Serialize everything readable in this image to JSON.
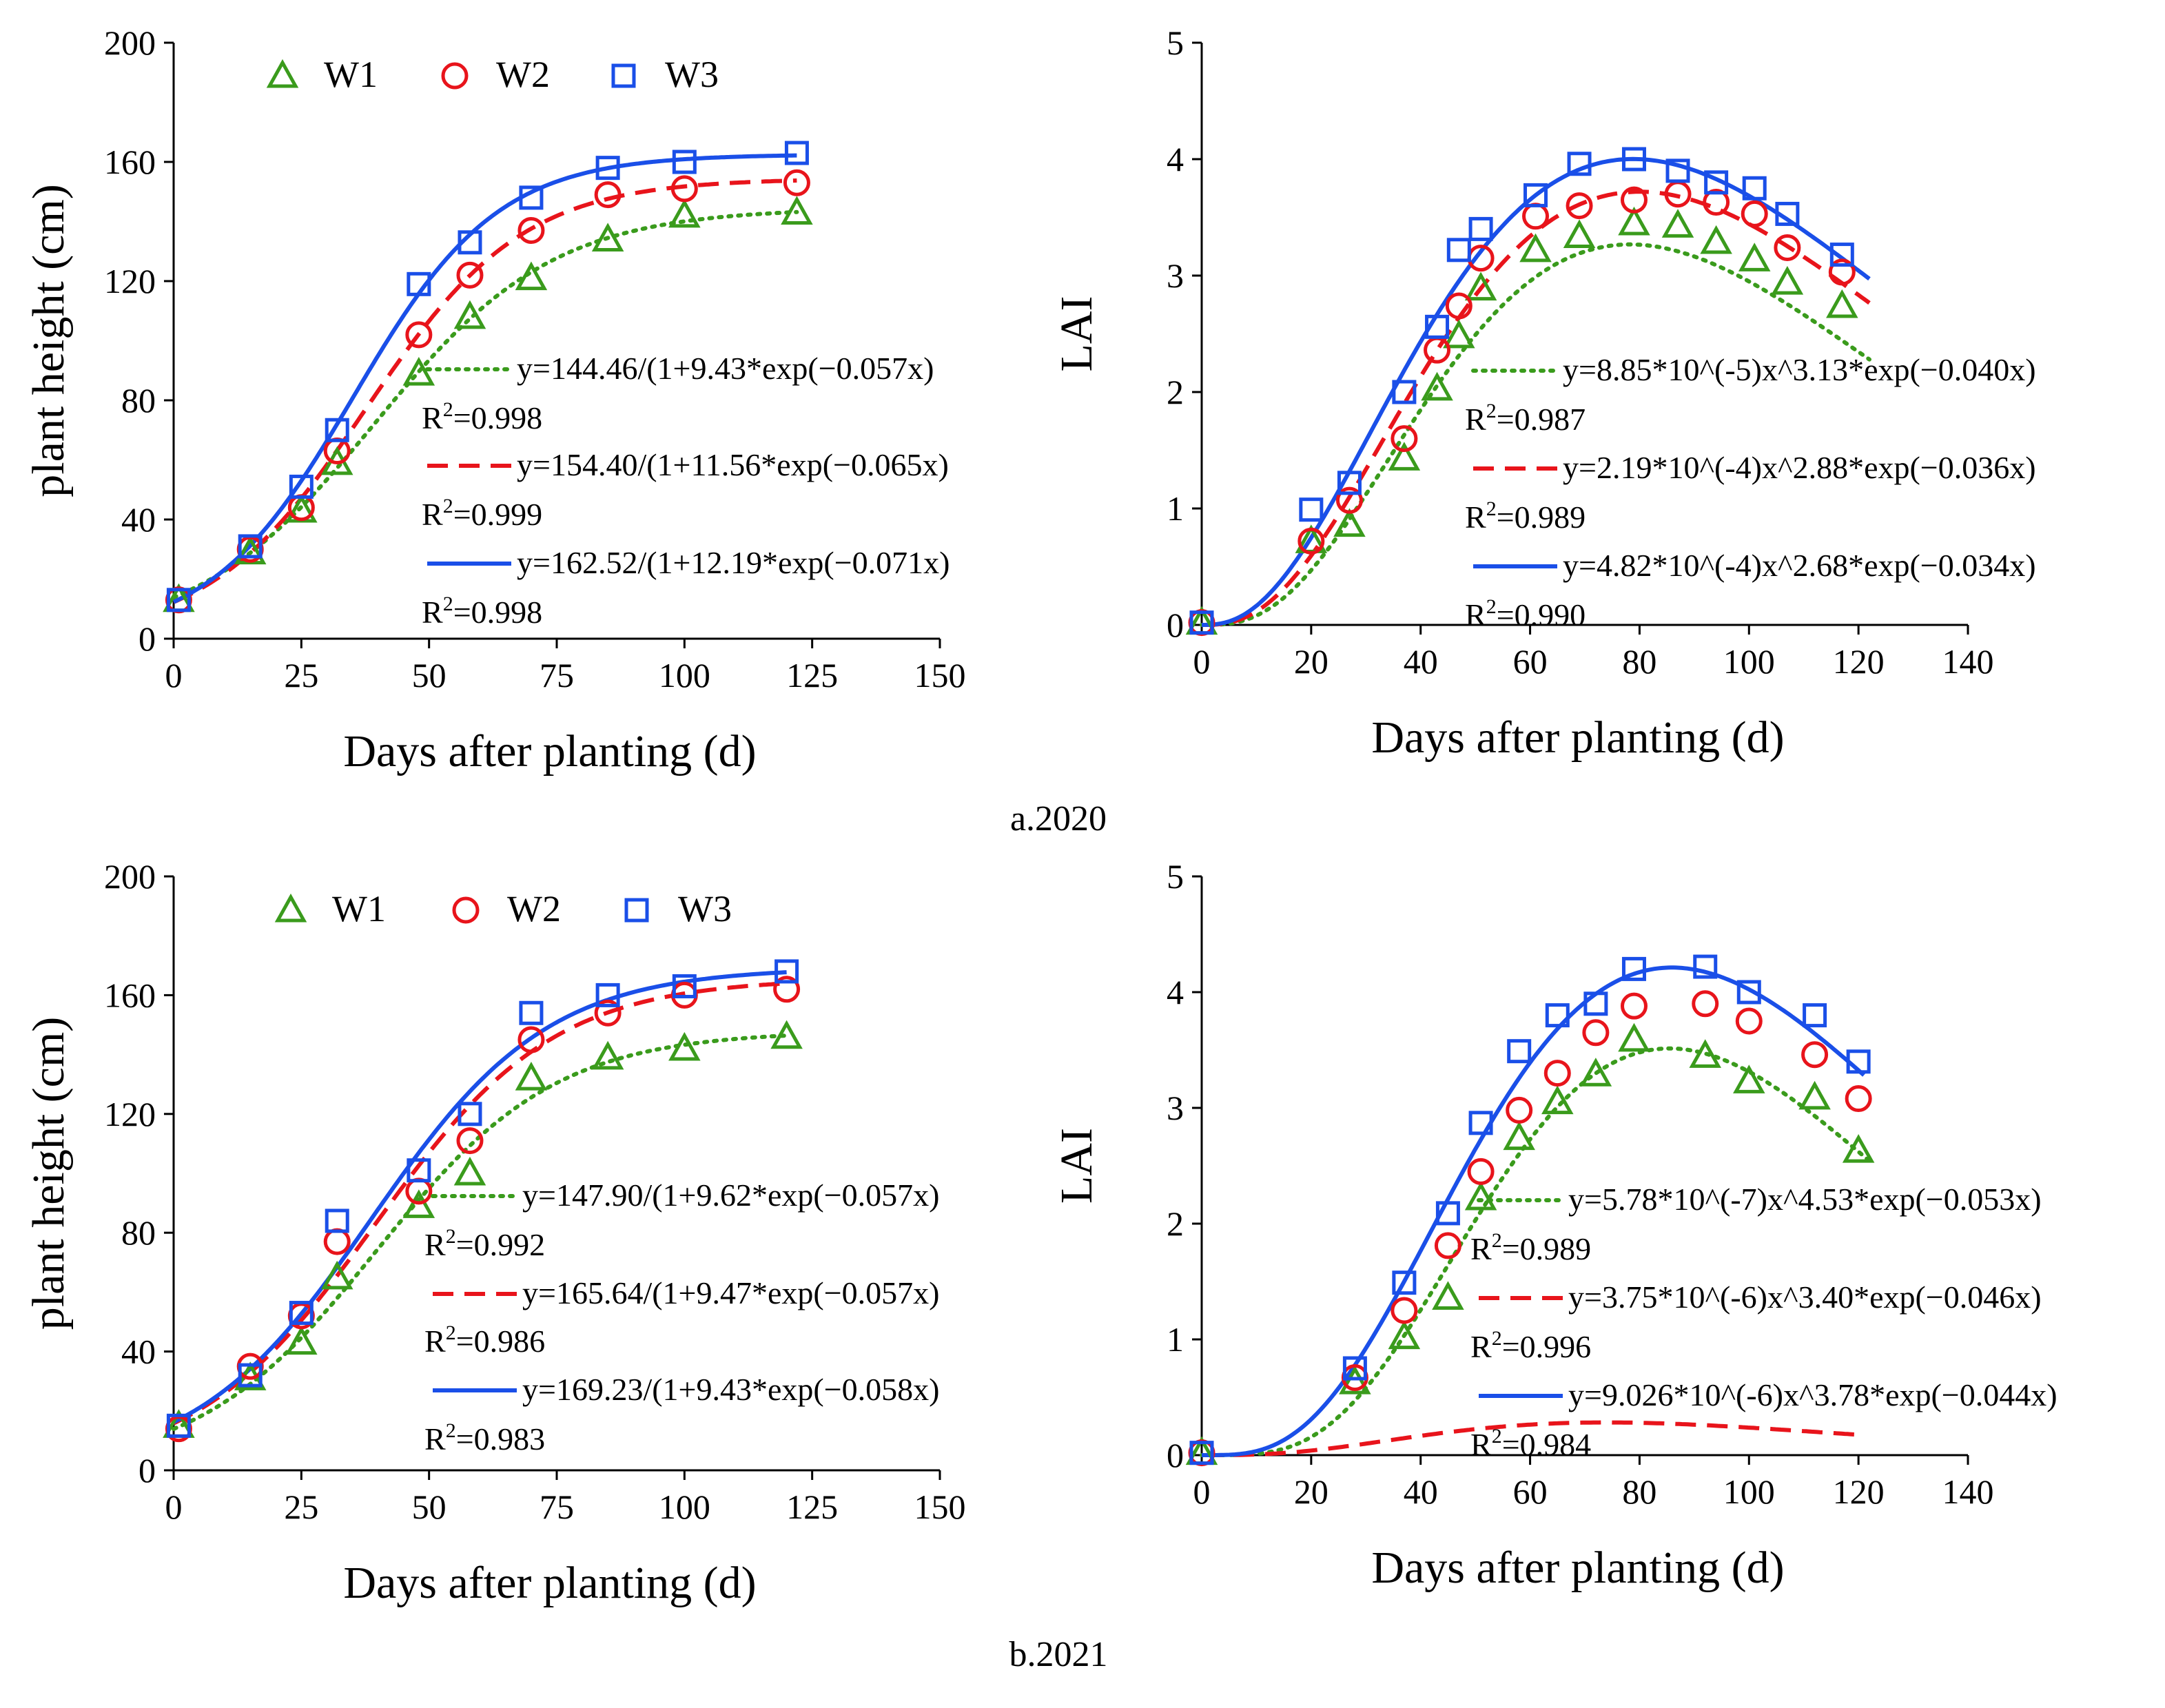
{
  "figure": {
    "captions": [
      "a.2020",
      "b.2021"
    ]
  },
  "colors": {
    "W1": "#3a9b1c",
    "W2": "#e8141b",
    "W3": "#1a4fe8"
  },
  "chart_data": [
    {
      "id": "a-height",
      "type": "scatter",
      "title": "",
      "xlabel": "Days after planting (d)",
      "ylabel": "plant height (cm)",
      "xlim": [
        0,
        150
      ],
      "ylim": [
        0,
        200
      ],
      "xticks": [
        0,
        25,
        50,
        75,
        100,
        125,
        150
      ],
      "yticks": [
        0,
        40,
        80,
        120,
        160,
        200
      ],
      "legend": [
        "W1",
        "W2",
        "W3"
      ],
      "series": [
        {
          "name": "W1",
          "marker": "triangle",
          "x": [
            1,
            15,
            25,
            32,
            48,
            58,
            70,
            85,
            100,
            122
          ],
          "y": [
            13,
            29,
            43,
            59,
            89,
            108,
            121,
            134,
            142,
            143
          ],
          "model": {
            "kind": "logistic",
            "K": 144.46,
            "a": 9.43,
            "r": 0.057
          },
          "line": "dotted",
          "equation": "y=144.46/(1+9.43*exp(−0.057x)",
          "r2": "=0.998"
        },
        {
          "name": "W2",
          "marker": "circle",
          "x": [
            1,
            15,
            25,
            32,
            48,
            58,
            70,
            85,
            100,
            122
          ],
          "y": [
            13,
            30,
            44,
            63,
            102,
            122,
            137,
            149,
            151,
            153
          ],
          "model": {
            "kind": "logistic",
            "K": 154.4,
            "a": 11.56,
            "r": 0.065
          },
          "line": "dashed",
          "equation": "y=154.40/(1+11.56*exp(−0.065x)",
          "r2": "=0.999"
        },
        {
          "name": "W3",
          "marker": "square",
          "x": [
            1,
            15,
            25,
            32,
            48,
            58,
            70,
            85,
            100,
            122
          ],
          "y": [
            13,
            31,
            51,
            70,
            119,
            133,
            148,
            158,
            160,
            163
          ],
          "model": {
            "kind": "logistic",
            "K": 162.52,
            "a": 12.19,
            "r": 0.071
          },
          "line": "solid",
          "equation": "y=162.52/(1+12.19*exp(−0.071x)",
          "r2": "=0.998"
        }
      ]
    },
    {
      "id": "a-lai",
      "type": "scatter",
      "title": "",
      "xlabel": "Days after planting (d)",
      "ylabel": "LAI",
      "xlim": [
        0,
        140
      ],
      "ylim": [
        0,
        5
      ],
      "xticks": [
        0,
        20,
        40,
        60,
        80,
        100,
        120,
        140
      ],
      "yticks": [
        0,
        1,
        2,
        3,
        4,
        5
      ],
      "legend": [],
      "series": [
        {
          "name": "W1",
          "marker": "triangle",
          "x": [
            0,
            20,
            27,
            37,
            43,
            47,
            51,
            61,
            69,
            79,
            87,
            94,
            101,
            107,
            117
          ],
          "y": [
            0.02,
            0.72,
            0.86,
            1.43,
            2.03,
            2.48,
            2.89,
            3.22,
            3.34,
            3.45,
            3.43,
            3.29,
            3.14,
            2.94,
            2.74
          ],
          "model": {
            "kind": "power-exp",
            "A": 8.85e-05,
            "b": 3.13,
            "c": 0.04,
            "xmax": 122
          },
          "line": "dotted",
          "equation": "y=8.85*10^(-5)x^3.13*exp(−0.040x)",
          "r2": "=0.987"
        },
        {
          "name": "W2",
          "marker": "circle",
          "x": [
            0,
            20,
            27,
            37,
            43,
            47,
            51,
            61,
            69,
            79,
            87,
            94,
            101,
            107,
            117
          ],
          "y": [
            0.02,
            0.72,
            1.07,
            1.6,
            2.36,
            2.74,
            3.15,
            3.51,
            3.6,
            3.65,
            3.7,
            3.63,
            3.53,
            3.24,
            3.03
          ],
          "model": {
            "kind": "power-exp",
            "A": 0.000219,
            "b": 2.88,
            "c": 0.036,
            "xmax": 122
          },
          "line": "dashed",
          "equation": "y=2.19*10^(-4)x^2.88*exp(−0.036x)",
          "r2": "=0.989"
        },
        {
          "name": "W3",
          "marker": "square",
          "x": [
            0,
            20,
            27,
            37,
            43,
            47,
            51,
            61,
            69,
            79,
            87,
            94,
            101,
            107,
            117
          ],
          "y": [
            0.02,
            0.99,
            1.22,
            2.0,
            2.56,
            3.22,
            3.4,
            3.69,
            3.96,
            4.0,
            3.9,
            3.8,
            3.75,
            3.53,
            3.18
          ],
          "model": {
            "kind": "power-exp",
            "A": 0.000482,
            "b": 2.68,
            "c": 0.034,
            "xmax": 122
          },
          "line": "solid",
          "equation": "y=4.82*10^(-4)x^2.68*exp(−0.034x)",
          "r2": "=0.990"
        }
      ]
    },
    {
      "id": "b-height",
      "type": "scatter",
      "title": "",
      "xlabel": "Days after planting (d)",
      "ylabel": "plant height (cm)",
      "xlim": [
        0,
        150
      ],
      "ylim": [
        0,
        200
      ],
      "xticks": [
        0,
        25,
        50,
        75,
        100,
        125,
        150
      ],
      "yticks": [
        0,
        40,
        80,
        120,
        160,
        200
      ],
      "legend": [
        "W1",
        "W2",
        "W3"
      ],
      "series": [
        {
          "name": "W1",
          "marker": "triangle",
          "x": [
            1,
            15,
            25,
            32,
            48,
            58,
            70,
            85,
            100,
            120
          ],
          "y": [
            15,
            31,
            43,
            65,
            89,
            100,
            132,
            139,
            142,
            146
          ],
          "model": {
            "kind": "logistic",
            "K": 147.9,
            "a": 9.62,
            "r": 0.057
          },
          "line": "dotted",
          "equation": "y=147.90/(1+9.62*exp(−0.057x)",
          "r2": "=0.992"
        },
        {
          "name": "W2",
          "marker": "circle",
          "x": [
            1,
            15,
            25,
            32,
            48,
            58,
            70,
            85,
            100,
            120
          ],
          "y": [
            14,
            35,
            52,
            77,
            94,
            111,
            145,
            154,
            160,
            162
          ],
          "model": {
            "kind": "logistic",
            "K": 165.64,
            "a": 9.47,
            "r": 0.057
          },
          "line": "dashed",
          "equation": "y=165.64/(1+9.47*exp(−0.057x)",
          "r2": "=0.986"
        },
        {
          "name": "W3",
          "marker": "square",
          "x": [
            1,
            15,
            25,
            32,
            48,
            58,
            70,
            85,
            100,
            120
          ],
          "y": [
            15,
            32,
            53,
            84,
            101,
            120,
            154,
            160,
            163,
            168
          ],
          "model": {
            "kind": "logistic",
            "K": 169.23,
            "a": 9.43,
            "r": 0.058
          },
          "line": "solid",
          "equation": "y=169.23/(1+9.43*exp(−0.058x)",
          "r2": "=0.983"
        }
      ]
    },
    {
      "id": "b-lai",
      "type": "scatter",
      "title": "",
      "xlabel": "Days after planting (d)",
      "ylabel": "LAI",
      "xlim": [
        0,
        140
      ],
      "ylim": [
        0,
        5
      ],
      "xticks": [
        0,
        20,
        40,
        60,
        80,
        100,
        120,
        140
      ],
      "yticks": [
        0,
        1,
        2,
        3,
        4,
        5
      ],
      "legend": [],
      "series": [
        {
          "name": "W1",
          "marker": "triangle",
          "x": [
            0,
            28,
            37,
            45,
            51,
            58,
            65,
            72,
            79,
            92,
            100,
            112,
            120
          ],
          "y": [
            0.02,
            0.63,
            1.02,
            1.36,
            2.22,
            2.74,
            3.05,
            3.29,
            3.59,
            3.45,
            3.23,
            3.09,
            2.63
          ],
          "model": {
            "kind": "power-exp",
            "A": 5.78e-07,
            "b": 4.53,
            "c": 0.053,
            "xmax": 122
          },
          "line": "dotted",
          "equation": "y=5.78*10^(-7)x^4.53*exp(−0.053x)",
          "r2": "=0.989"
        },
        {
          "name": "W2",
          "marker": "circle",
          "x": [
            0,
            28,
            37,
            45,
            51,
            58,
            65,
            72,
            79,
            92,
            100,
            112,
            120
          ],
          "y": [
            0.02,
            0.67,
            1.25,
            1.81,
            2.45,
            2.98,
            3.3,
            3.65,
            3.88,
            3.9,
            3.75,
            3.46,
            3.08
          ],
          "model": {
            "kind": "power-exp",
            "A": 3.75e-06,
            "b": 3.4,
            "c": 0.046,
            "xmax": 121
          },
          "line": "dashed",
          "equation": "y=3.75*10^(-6)x^3.40*exp(−0.046x)",
          "r2": "=0.996"
        },
        {
          "name": "W3",
          "marker": "square",
          "x": [
            0,
            28,
            37,
            45,
            51,
            58,
            65,
            72,
            79,
            92,
            100,
            112,
            120
          ],
          "y": [
            0.02,
            0.75,
            1.49,
            2.09,
            2.87,
            3.49,
            3.8,
            3.9,
            4.2,
            4.22,
            4.0,
            3.8,
            3.4
          ],
          "model": {
            "kind": "power-exp",
            "A": 9.026e-06,
            "b": 3.78,
            "c": 0.044,
            "xmax": 121
          },
          "line": "solid",
          "equation": "y=9.026*10^(-6)x^3.78*exp(−0.044x)",
          "r2": "=0.984"
        }
      ]
    }
  ]
}
